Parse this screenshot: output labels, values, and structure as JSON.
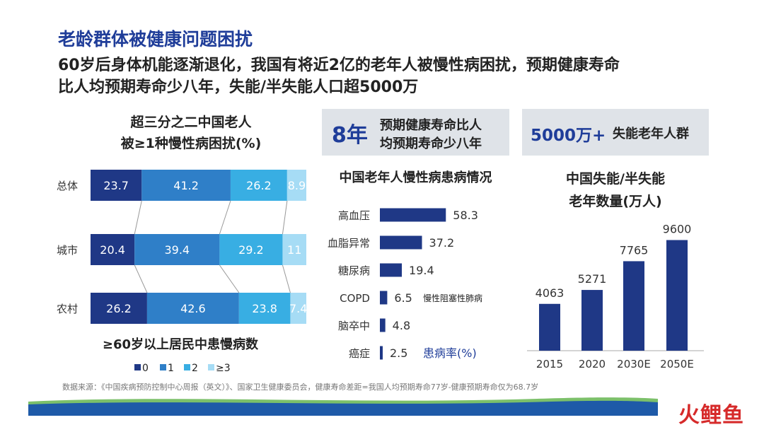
{
  "header": {
    "title": "老龄群体被健康问题困扰",
    "subtitle_line1": "60岁后身体机能逐渐退化，我国有将近2亿的老年人被慢性病困扰，预期健康寿命",
    "subtitle_line2": "比人均预期寿命少八年，失能/半失能人口超5000万"
  },
  "left_panel": {
    "title_line1": "超三分之二中国老人",
    "title_line2": "被≥1种慢性病困扰(%)",
    "xlabel": "≥60岁以上居民中患慢病数"
  },
  "middle_panel": {
    "highlight_number": "8年",
    "highlight_line1": "预期健康寿命比人",
    "highlight_line2": "均预期寿命少八年",
    "title": "中国老年人慢性病患病情况",
    "copd_note": "慢性阻塞性肺病",
    "unit_label": "患病率(%)"
  },
  "right_panel": {
    "highlight_number": "5000万+",
    "highlight_text": "失能老年人群",
    "title_line1": "中国失能/半失能",
    "title_line2": "老年数量(万人)"
  },
  "footer": {
    "source": "数据来源：《中国疾病预防控制中心周报（英文）》、国家卫生健康委员会，健康寿命差距=我国人均预期寿命77岁-健康预期寿命仅为68.7岁",
    "logo": "火鲤鱼"
  },
  "colors": {
    "title_blue": "#1f3d99",
    "navy": "#1f3886",
    "blue": "#2f7fc8",
    "light_blue": "#38aee3",
    "pale_blue": "#a6dcf5",
    "box_gray": "#dfe3e8",
    "logo_red": "#d62a2a"
  },
  "chart_data": [
    {
      "type": "bar",
      "orientation": "horizontal",
      "stacked": true,
      "categories": [
        "总体",
        "城市",
        "农村"
      ],
      "series": [
        {
          "name": "0",
          "values": [
            23.7,
            20.4,
            26.2
          ]
        },
        {
          "name": "1",
          "values": [
            41.2,
            39.4,
            42.6
          ]
        },
        {
          "name": "2",
          "values": [
            26.2,
            29.2,
            23.8
          ]
        },
        {
          "name": "≥3",
          "values": [
            8.9,
            11,
            7.4
          ]
        }
      ],
      "labels": [
        [
          "23.7",
          "41.2",
          "26.2",
          "8.9"
        ],
        [
          "20.4",
          "39.4",
          "29.2",
          "11"
        ],
        [
          "26.2",
          "42.6",
          "23.8",
          "7.4"
        ]
      ],
      "title": "超三分之二中国老人被≥1种慢性病困扰(%)",
      "xlabel": "≥60岁以上居民中患慢病数",
      "legend": "bottom"
    },
    {
      "type": "bar",
      "orientation": "horizontal",
      "categories": [
        "高血压",
        "血脂异常",
        "糖尿病",
        "COPD",
        "脑卒中",
        "癌症"
      ],
      "values": [
        58.3,
        37.2,
        19.4,
        6.5,
        4.8,
        2.5
      ],
      "title": "中国老年人慢性病患病情况",
      "xlabel": "患病率(%)"
    },
    {
      "type": "bar",
      "categories": [
        "2015",
        "2020",
        "2030E",
        "2050E"
      ],
      "values": [
        4063,
        5271,
        7765,
        9600
      ],
      "title": "中国失能/半失能老年数量(万人)"
    }
  ]
}
